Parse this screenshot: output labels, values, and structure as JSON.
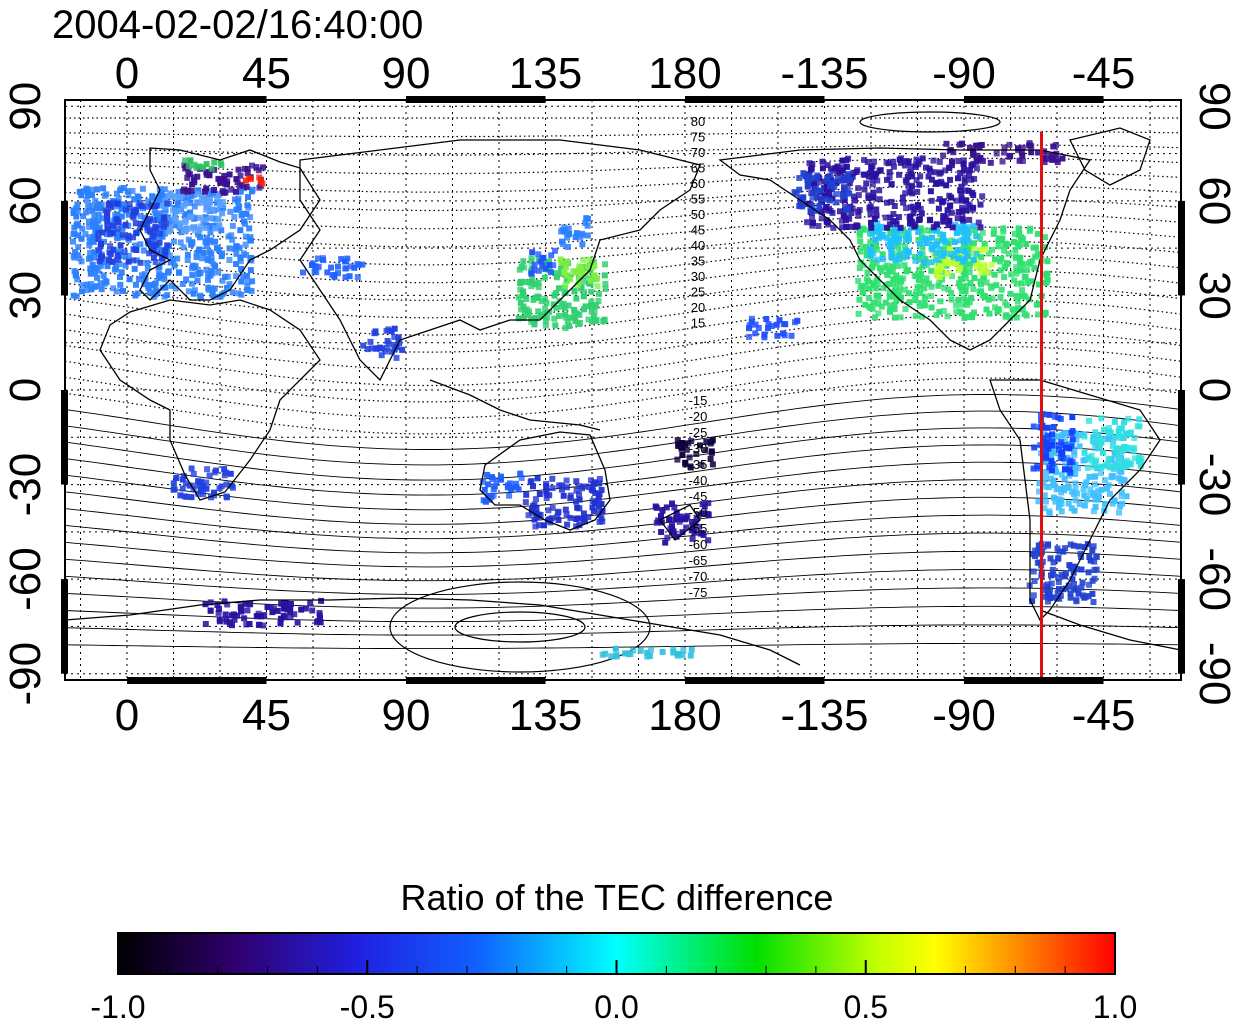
{
  "map": {
    "title": "2004-02-02/16:40:00",
    "lon_ticks": [
      "0",
      "45",
      "90",
      "135",
      "180",
      "-135",
      "-90",
      "-45"
    ],
    "lat_ticks": [
      "90",
      "60",
      "30",
      "0",
      "-30",
      "-60",
      "-90"
    ],
    "lon_tick_values": [
      0,
      45,
      90,
      135,
      180,
      225,
      270,
      315
    ],
    "lat_tick_values": [
      90,
      60,
      30,
      0,
      -30,
      -60,
      -90
    ],
    "lon_range": [
      -20,
      340
    ],
    "lat_range": [
      -92,
      92
    ],
    "grid": true,
    "terminator_longitude": -65,
    "terminator_color": "#e01010",
    "contour_labels_north": [
      "80",
      "75",
      "70",
      "65",
      "60",
      "55",
      "50",
      "45",
      "40",
      "35",
      "30",
      "25",
      "20",
      "15"
    ],
    "contour_labels_south": [
      "-15",
      "-20",
      "-25",
      "-30",
      "-35",
      "-40",
      "-45",
      "-50",
      "-55",
      "-60",
      "-65",
      "-70",
      "-75"
    ]
  },
  "colorbar": {
    "title": "Ratio of the TEC difference",
    "tick_labels": [
      "-1.0",
      "-0.5",
      "0.0",
      "0.5",
      "1.0"
    ],
    "range": [
      -1.0,
      1.0
    ],
    "colors": [
      "#000000",
      "#3b0080",
      "#0000ff",
      "#00ffff",
      "#00ff00",
      "#ffff00",
      "#ff0000"
    ]
  }
}
